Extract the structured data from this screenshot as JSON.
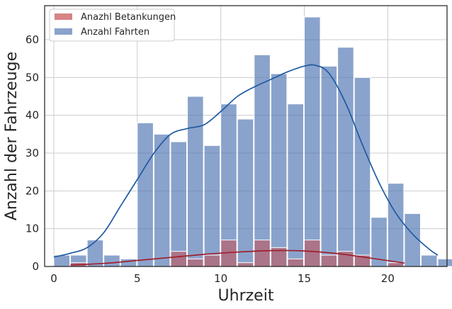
{
  "chart_data": {
    "type": "bar",
    "xlabel": "Uhrzeit",
    "ylabel": "Anzahl der Fahrzeuge",
    "xlim": [
      -0.55,
      23.55
    ],
    "ylim": [
      0,
      69
    ],
    "xticks": [
      0,
      5,
      10,
      15,
      20
    ],
    "yticks": [
      0,
      10,
      20,
      30,
      40,
      50,
      60
    ],
    "grid": true,
    "legend_position": "top-left",
    "bin_width": 0.958,
    "series": [
      {
        "name": "Anazhl Betankungen",
        "color": "#c44e52",
        "bins": [
          {
            "x": 1.0,
            "value": 1
          },
          {
            "x": 7.0,
            "value": 4
          },
          {
            "x": 8.0,
            "value": 2
          },
          {
            "x": 9.0,
            "value": 3
          },
          {
            "x": 10.0,
            "value": 7
          },
          {
            "x": 11.0,
            "value": 1
          },
          {
            "x": 12.0,
            "value": 7
          },
          {
            "x": 13.0,
            "value": 5
          },
          {
            "x": 14.0,
            "value": 2
          },
          {
            "x": 15.0,
            "value": 7
          },
          {
            "x": 16.0,
            "value": 3
          },
          {
            "x": 17.0,
            "value": 4
          },
          {
            "x": 18.0,
            "value": 3
          },
          {
            "x": 20.0,
            "value": 1
          }
        ],
        "kde": [
          [
            1,
            0.4
          ],
          [
            3,
            0.8
          ],
          [
            5,
            1.6
          ],
          [
            7,
            2.4
          ],
          [
            9,
            3.2
          ],
          [
            11,
            3.8
          ],
          [
            13,
            4.2
          ],
          [
            15,
            4.1
          ],
          [
            17,
            3.4
          ],
          [
            19,
            2.2
          ],
          [
            21,
            0.9
          ]
        ]
      },
      {
        "name": "Anzahl Fahrten",
        "color": "#4c72b0",
        "bins": [
          {
            "x": 0.0,
            "value": 3
          },
          {
            "x": 1.0,
            "value": 3
          },
          {
            "x": 2.0,
            "value": 7
          },
          {
            "x": 3.0,
            "value": 3
          },
          {
            "x": 4.0,
            "value": 2
          },
          {
            "x": 5.0,
            "value": 38
          },
          {
            "x": 6.0,
            "value": 35
          },
          {
            "x": 7.0,
            "value": 33
          },
          {
            "x": 8.0,
            "value": 45
          },
          {
            "x": 9.0,
            "value": 32
          },
          {
            "x": 10.0,
            "value": 43
          },
          {
            "x": 11.0,
            "value": 39
          },
          {
            "x": 12.0,
            "value": 56
          },
          {
            "x": 13.0,
            "value": 51
          },
          {
            "x": 14.0,
            "value": 43
          },
          {
            "x": 15.0,
            "value": 66
          },
          {
            "x": 16.0,
            "value": 53
          },
          {
            "x": 17.0,
            "value": 58
          },
          {
            "x": 18.0,
            "value": 50
          },
          {
            "x": 19.0,
            "value": 13
          },
          {
            "x": 20.0,
            "value": 22
          },
          {
            "x": 21.0,
            "value": 14
          },
          {
            "x": 22.0,
            "value": 3
          },
          {
            "x": 23.0,
            "value": 2
          }
        ],
        "kde": [
          [
            0,
            2.5
          ],
          [
            1,
            3.5
          ],
          [
            2,
            5
          ],
          [
            3,
            9
          ],
          [
            4,
            16
          ],
          [
            5,
            23
          ],
          [
            6,
            30
          ],
          [
            7,
            35
          ],
          [
            8,
            36.5
          ],
          [
            9,
            37.5
          ],
          [
            10,
            41
          ],
          [
            11,
            45
          ],
          [
            12,
            47.5
          ],
          [
            13,
            49.5
          ],
          [
            14,
            51.5
          ],
          [
            15,
            53
          ],
          [
            15.7,
            53.2
          ],
          [
            16.5,
            51
          ],
          [
            17.5,
            43
          ],
          [
            18.5,
            32
          ],
          [
            19.5,
            22
          ],
          [
            20.5,
            14
          ],
          [
            21.5,
            8.5
          ],
          [
            22.5,
            4.5
          ],
          [
            23,
            3
          ]
        ]
      }
    ]
  }
}
